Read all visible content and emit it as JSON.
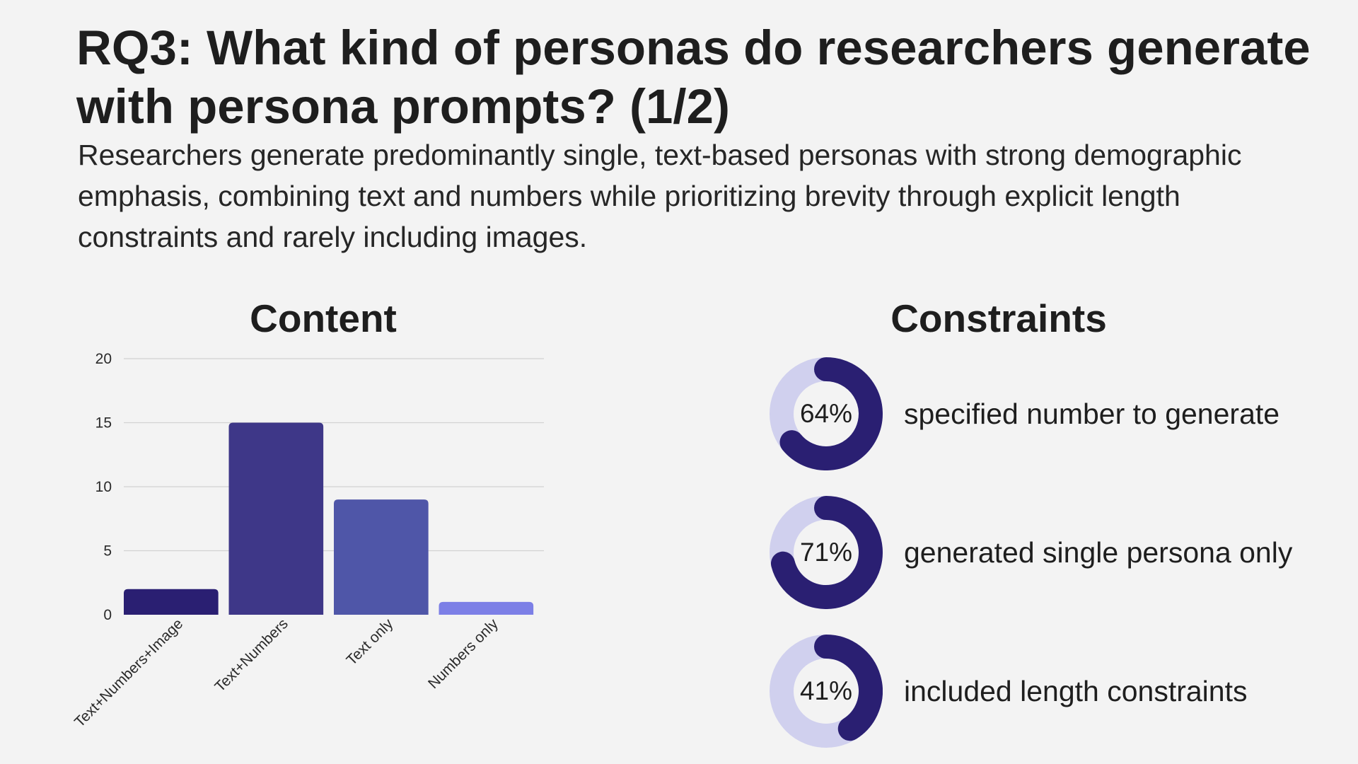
{
  "slide": {
    "title": "RQ3: What kind of personas do researchers generate with persona prompts? (1/2)",
    "subtitle": "Researchers generate predominantly single, text-based personas with strong demographic emphasis, combining text and numbers while prioritizing brevity through explicit length constraints and rarely including images."
  },
  "content": {
    "title": "Content"
  },
  "constraints": {
    "title": "Constraints",
    "items": [
      {
        "percent_label": "64%",
        "value": 64,
        "text": "specified number to generate"
      },
      {
        "percent_label": "71%",
        "value": 71,
        "text": "generated single persona only"
      },
      {
        "percent_label": "41%",
        "value": 41,
        "text": "included length constraints"
      }
    ],
    "colors": {
      "fill": "#2a1f72",
      "track": "#d0d0ee"
    }
  },
  "chart_data": {
    "type": "bar",
    "title": "Content",
    "categories": [
      "Text+Numbers+Image",
      "Text+Numbers",
      "Text only",
      "Numbers only"
    ],
    "values": [
      2,
      15,
      9,
      1
    ],
    "colors": [
      "#2a1f72",
      "#3e3788",
      "#4f56a8",
      "#7c7fe6"
    ],
    "ylim": [
      0,
      20
    ],
    "yticks": [
      0,
      5,
      10,
      15,
      20
    ],
    "xlabel": "",
    "ylabel": "",
    "grid": true
  }
}
